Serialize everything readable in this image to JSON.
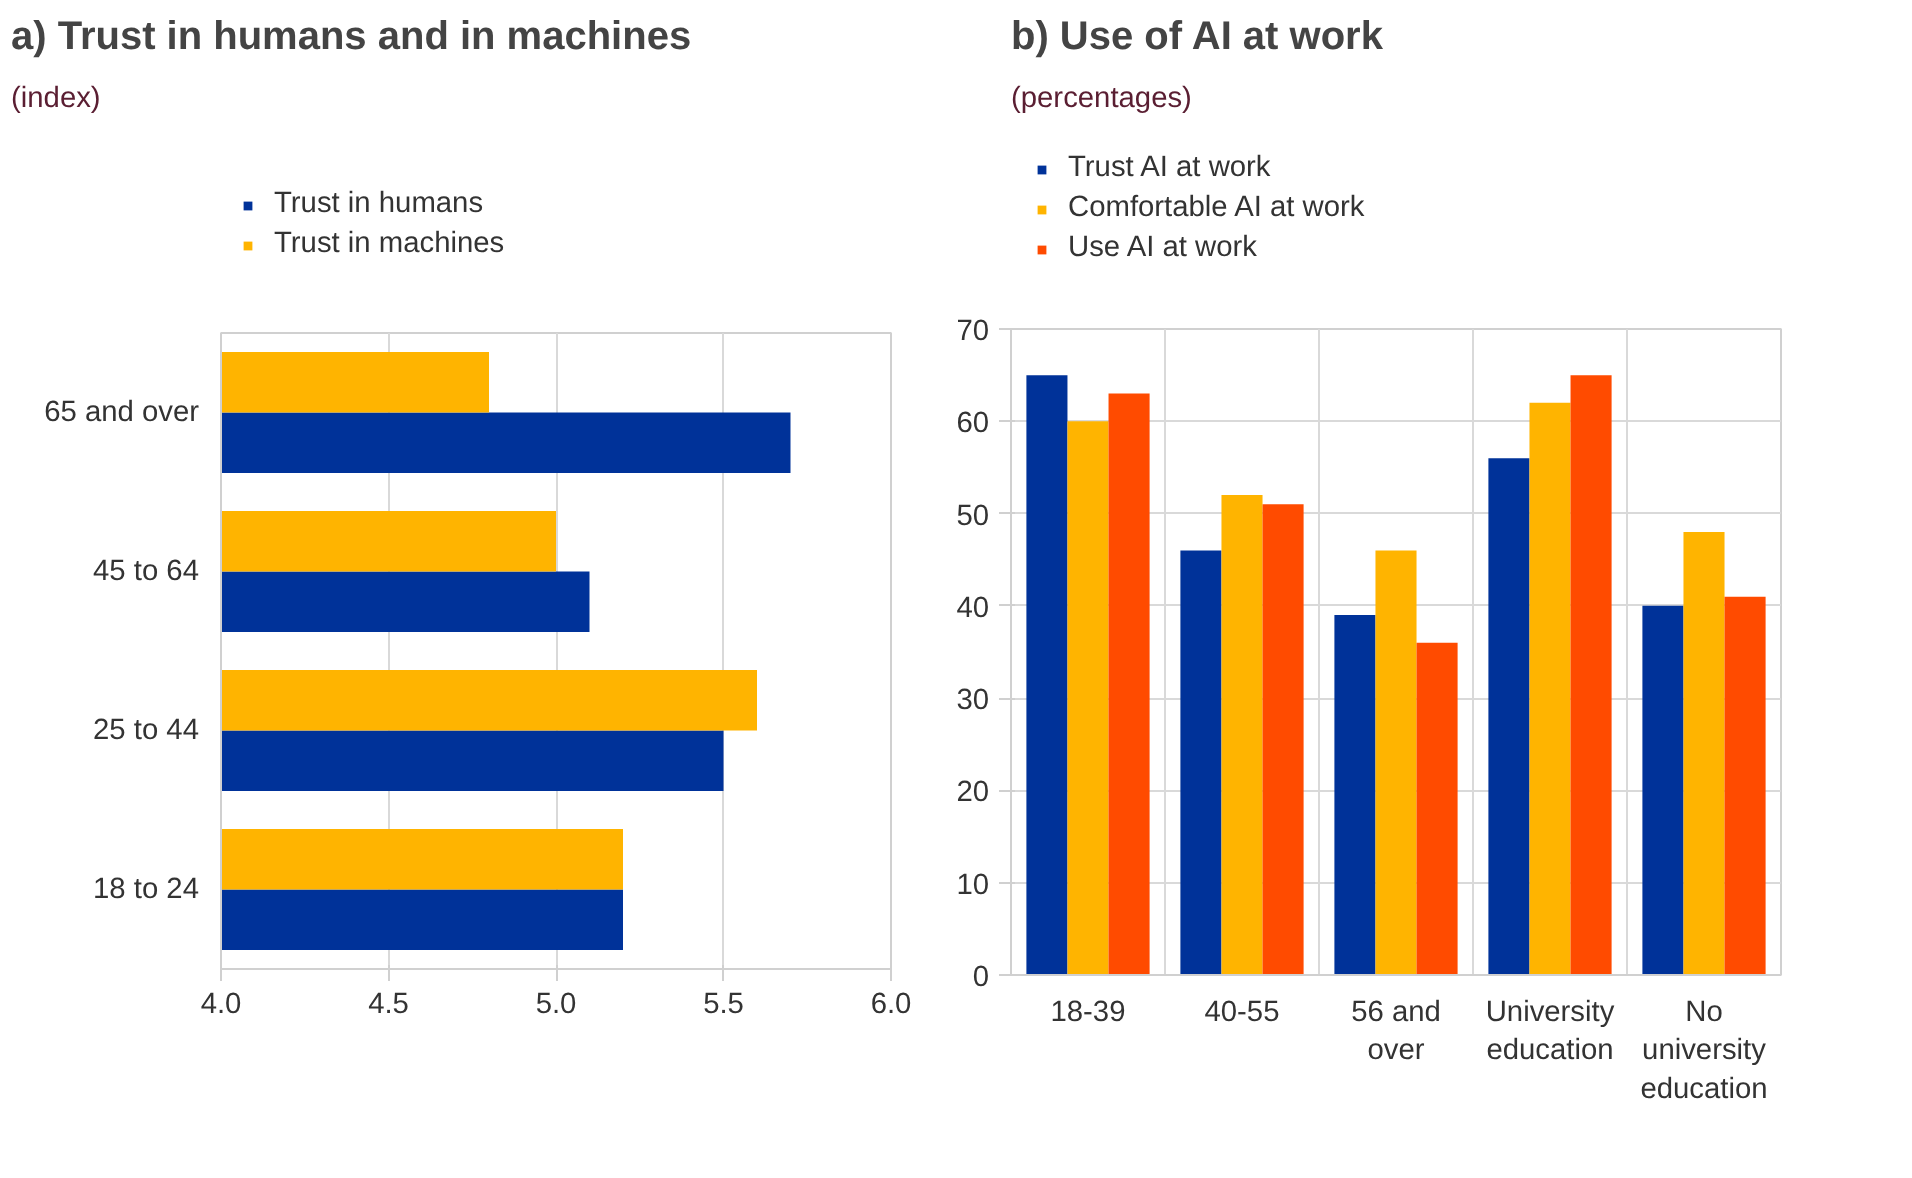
{
  "chart_data": [
    {
      "type": "bar",
      "orientation": "horizontal",
      "title": "a) Trust in humans and in machines",
      "subtitle": "(index)",
      "categories": [
        "65 and over",
        "45 to 64",
        "25 to 44",
        "18 to 24"
      ],
      "xlim": [
        4.0,
        6.0
      ],
      "xticks": [
        {
          "value": 4.0,
          "label": "4.0"
        },
        {
          "value": 4.5,
          "label": "4.5"
        },
        {
          "value": 5.0,
          "label": "5.0"
        },
        {
          "value": 5.5,
          "label": "5.5"
        },
        {
          "value": 6.0,
          "label": "6.0"
        }
      ],
      "grid": "x",
      "legend": "top",
      "series": [
        {
          "name": "Trust in humans",
          "color": "#003299",
          "values": [
            5.7,
            5.1,
            5.5,
            5.2
          ]
        },
        {
          "name": "Trust in machines",
          "color": "#ffb400",
          "values": [
            4.8,
            5.0,
            5.6,
            5.2
          ]
        }
      ]
    },
    {
      "type": "bar",
      "title": "b) Use of AI at work",
      "subtitle": "(percentages)",
      "categories": [
        "18-39",
        "40-55",
        "56 and over",
        "University education",
        "No university education"
      ],
      "ylim": [
        0,
        70
      ],
      "yticks": [
        0,
        10,
        20,
        30,
        40,
        50,
        60,
        70
      ],
      "grid": true,
      "legend": "top",
      "series": [
        {
          "name": "Trust AI at work",
          "color": "#003299",
          "values": [
            65,
            46,
            39,
            56,
            40
          ]
        },
        {
          "name": "Comfortable AI at work",
          "color": "#ffb400",
          "values": [
            60,
            52,
            46,
            62,
            48
          ]
        },
        {
          "name": "Use AI at work",
          "color": "#ff4b00",
          "values": [
            63,
            51,
            36,
            65,
            41
          ]
        }
      ]
    }
  ]
}
